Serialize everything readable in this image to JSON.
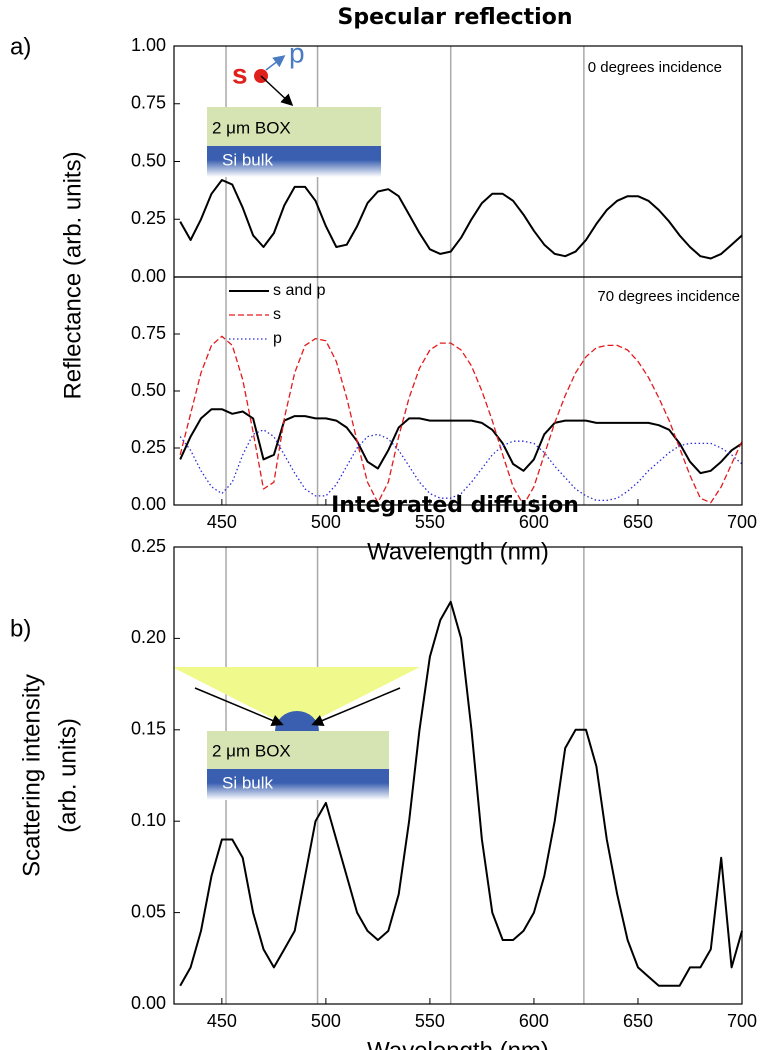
{
  "chart_data": [
    {
      "type": "line",
      "title": "Specular reflection",
      "panel_label": "a)",
      "ylabel": "Reflectance (arb. units)",
      "annotation": "0 degrees incidence",
      "inset": {
        "layers": [
          "2 μm BOX",
          "Si bulk"
        ],
        "s": "s",
        "p": "p"
      },
      "x": [
        430,
        435,
        440,
        445,
        450,
        455,
        460,
        465,
        470,
        475,
        480,
        485,
        490,
        495,
        500,
        505,
        510,
        515,
        520,
        525,
        530,
        535,
        540,
        545,
        550,
        555,
        560,
        565,
        570,
        575,
        580,
        585,
        590,
        595,
        600,
        605,
        610,
        615,
        620,
        625,
        630,
        635,
        640,
        645,
        650,
        655,
        660,
        665,
        670,
        675,
        680,
        685,
        690,
        695,
        700
      ],
      "values": [
        0.24,
        0.16,
        0.25,
        0.36,
        0.42,
        0.4,
        0.3,
        0.18,
        0.13,
        0.19,
        0.31,
        0.39,
        0.39,
        0.33,
        0.22,
        0.13,
        0.14,
        0.22,
        0.32,
        0.37,
        0.38,
        0.35,
        0.27,
        0.19,
        0.12,
        0.1,
        0.11,
        0.17,
        0.25,
        0.32,
        0.36,
        0.36,
        0.33,
        0.27,
        0.2,
        0.14,
        0.1,
        0.09,
        0.11,
        0.16,
        0.23,
        0.29,
        0.33,
        0.35,
        0.35,
        0.33,
        0.29,
        0.24,
        0.18,
        0.13,
        0.09,
        0.08,
        0.1,
        0.14,
        0.18
      ],
      "color": "#000000",
      "xlim": [
        427,
        700
      ],
      "ylim": [
        0,
        1
      ],
      "yticks": [
        {
          "value": 0,
          "label": "0.00"
        },
        {
          "value": 0.25,
          "label": "0.25"
        },
        {
          "value": 0.5,
          "label": "0.50"
        },
        {
          "value": 0.75,
          "label": "0.75"
        },
        {
          "value": 1,
          "label": "1.00"
        }
      ],
      "vlines": [
        452,
        496,
        560,
        624
      ]
    },
    {
      "type": "line",
      "annotation": "70 degrees incidence",
      "xlabel": "Wavelength (nm)",
      "legend": "upper left",
      "x": [
        430,
        435,
        440,
        445,
        450,
        455,
        460,
        465,
        470,
        475,
        480,
        485,
        490,
        495,
        500,
        505,
        510,
        515,
        520,
        525,
        530,
        535,
        540,
        545,
        550,
        555,
        560,
        565,
        570,
        575,
        580,
        585,
        590,
        595,
        600,
        605,
        610,
        615,
        620,
        625,
        630,
        635,
        640,
        645,
        650,
        655,
        660,
        665,
        670,
        675,
        680,
        685,
        690,
        695,
        700
      ],
      "series": [
        {
          "name": "s and p",
          "color": "#000000",
          "dash": "solid",
          "values": [
            0.2,
            0.3,
            0.38,
            0.42,
            0.42,
            0.4,
            0.41,
            0.38,
            0.2,
            0.22,
            0.37,
            0.39,
            0.39,
            0.38,
            0.38,
            0.37,
            0.34,
            0.28,
            0.19,
            0.16,
            0.24,
            0.34,
            0.38,
            0.38,
            0.37,
            0.37,
            0.37,
            0.37,
            0.37,
            0.36,
            0.33,
            0.27,
            0.18,
            0.15,
            0.2,
            0.31,
            0.36,
            0.37,
            0.37,
            0.37,
            0.36,
            0.36,
            0.36,
            0.36,
            0.36,
            0.36,
            0.35,
            0.33,
            0.27,
            0.19,
            0.14,
            0.15,
            0.19,
            0.24,
            0.27
          ]
        },
        {
          "name": "s",
          "color": "#e41a1c",
          "dash": "dashed",
          "values": [
            0.22,
            0.4,
            0.58,
            0.7,
            0.74,
            0.7,
            0.55,
            0.32,
            0.07,
            0.1,
            0.38,
            0.58,
            0.7,
            0.73,
            0.72,
            0.63,
            0.47,
            0.28,
            0.1,
            0.01,
            0.1,
            0.3,
            0.47,
            0.6,
            0.68,
            0.71,
            0.71,
            0.68,
            0.61,
            0.5,
            0.37,
            0.22,
            0.08,
            0.0,
            0.08,
            0.22,
            0.36,
            0.48,
            0.58,
            0.65,
            0.69,
            0.7,
            0.7,
            0.68,
            0.63,
            0.56,
            0.47,
            0.37,
            0.25,
            0.13,
            0.03,
            0.01,
            0.08,
            0.18,
            0.28
          ]
        },
        {
          "name": "p",
          "color": "#2b2bd6",
          "dash": "dotted",
          "values": [
            0.3,
            0.24,
            0.15,
            0.08,
            0.05,
            0.1,
            0.22,
            0.31,
            0.33,
            0.3,
            0.22,
            0.14,
            0.07,
            0.04,
            0.04,
            0.09,
            0.17,
            0.25,
            0.3,
            0.31,
            0.29,
            0.24,
            0.17,
            0.1,
            0.05,
            0.03,
            0.03,
            0.05,
            0.1,
            0.16,
            0.22,
            0.26,
            0.28,
            0.28,
            0.27,
            0.23,
            0.17,
            0.12,
            0.07,
            0.04,
            0.02,
            0.02,
            0.03,
            0.06,
            0.1,
            0.15,
            0.19,
            0.23,
            0.26,
            0.27,
            0.27,
            0.27,
            0.25,
            0.22,
            0.18
          ]
        }
      ],
      "xlim": [
        427,
        700
      ],
      "ylim": [
        0,
        1
      ],
      "xticks": [
        450,
        500,
        550,
        600,
        650,
        700
      ],
      "yticks": [
        {
          "value": 0,
          "label": "0.00"
        },
        {
          "value": 0.25,
          "label": "0.25"
        },
        {
          "value": 0.5,
          "label": "0.50"
        },
        {
          "value": 0.75,
          "label": "0.75"
        }
      ],
      "vlines": [
        452,
        496,
        560,
        624
      ]
    },
    {
      "type": "line",
      "title": "Integrated diffusion",
      "panel_label": "b)",
      "ylabel": [
        "Scattering intensity",
        "(arb. units)"
      ],
      "xlabel": "Wavelength (nm)",
      "inset": {
        "layers": [
          "2 μm BOX",
          "Si bulk"
        ]
      },
      "x": [
        430,
        435,
        440,
        445,
        450,
        455,
        460,
        465,
        470,
        475,
        480,
        485,
        490,
        495,
        500,
        505,
        510,
        515,
        520,
        525,
        530,
        535,
        540,
        545,
        550,
        555,
        560,
        565,
        570,
        575,
        580,
        585,
        590,
        595,
        600,
        605,
        610,
        615,
        620,
        625,
        630,
        635,
        640,
        645,
        650,
        655,
        660,
        665,
        670,
        675,
        680,
        685,
        690,
        695,
        700
      ],
      "values": [
        0.01,
        0.02,
        0.04,
        0.07,
        0.09,
        0.09,
        0.08,
        0.05,
        0.03,
        0.02,
        0.03,
        0.04,
        0.07,
        0.1,
        0.11,
        0.09,
        0.07,
        0.05,
        0.04,
        0.035,
        0.04,
        0.06,
        0.1,
        0.15,
        0.19,
        0.21,
        0.22,
        0.2,
        0.15,
        0.09,
        0.05,
        0.035,
        0.035,
        0.04,
        0.05,
        0.07,
        0.1,
        0.14,
        0.15,
        0.15,
        0.13,
        0.09,
        0.06,
        0.035,
        0.02,
        0.015,
        0.01,
        0.01,
        0.01,
        0.02,
        0.02,
        0.03,
        0.08,
        0.02,
        0.04
      ],
      "color": "#000000",
      "xlim": [
        427,
        700
      ],
      "ylim": [
        0,
        0.25
      ],
      "xticks": [
        450,
        500,
        550,
        600,
        650,
        700
      ],
      "yticks": [
        {
          "value": 0,
          "label": "0.00"
        },
        {
          "value": 0.05,
          "label": "0.05"
        },
        {
          "value": 0.1,
          "label": "0.10"
        },
        {
          "value": 0.15,
          "label": "0.15"
        },
        {
          "value": 0.2,
          "label": "0.20"
        },
        {
          "value": 0.25,
          "label": "0.25"
        }
      ],
      "vlines": [
        452,
        496,
        560,
        624
      ]
    }
  ]
}
